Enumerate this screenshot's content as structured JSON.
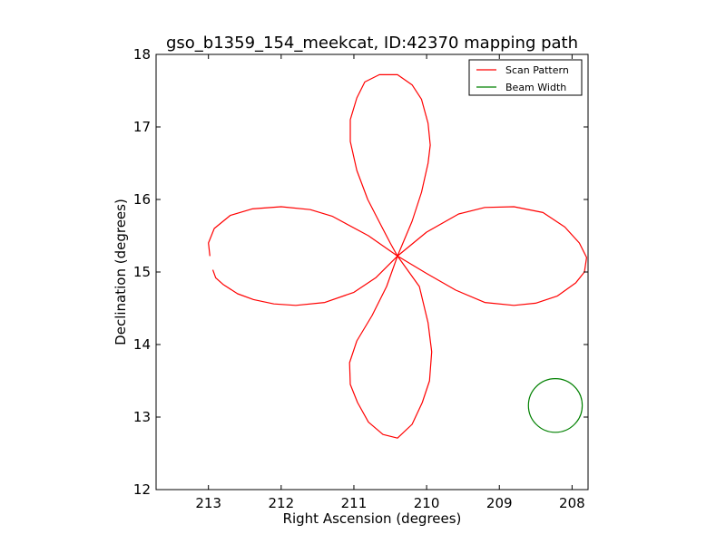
{
  "chart_data": {
    "type": "line",
    "title": "gso_b1359_154_meekcat, ID:42370 mapping path",
    "xlabel": "Right Ascension (degrees)",
    "ylabel": "Declination (degrees)",
    "xlim": [
      213.72,
      207.78
    ],
    "ylim": [
      12,
      18
    ],
    "x_inverted": true,
    "xticks": [
      "213",
      "212",
      "211",
      "210",
      "209",
      "208"
    ],
    "yticks": [
      "12",
      "13",
      "14",
      "15",
      "16",
      "17",
      "18"
    ],
    "grid": false,
    "legend_position": "top-right",
    "series": [
      {
        "name": "Scan Pattern",
        "color": "#ff0000",
        "x": [
          210.4,
          210.0,
          209.56,
          209.2,
          208.8,
          208.4,
          208.1,
          207.9,
          207.8,
          207.83,
          207.95,
          208.2,
          208.5,
          208.8,
          209.2,
          209.6,
          210.0,
          210.4,
          210.5,
          210.63,
          210.81,
          210.96,
          211.05,
          211.05,
          210.96,
          210.85,
          210.65,
          210.4,
          210.2,
          210.07,
          209.98,
          209.95,
          209.98,
          210.07,
          210.2,
          210.4,
          210.1,
          209.98,
          209.93,
          209.96,
          210.06,
          210.2,
          210.4,
          210.6,
          210.8,
          210.95,
          211.05,
          211.06,
          210.96,
          210.75,
          210.55,
          210.4,
          210.8,
          211.3,
          211.6,
          212.0,
          212.4,
          212.7,
          212.92,
          213.0,
          212.98
        ],
        "y": [
          15.22,
          15.55,
          15.8,
          15.89,
          15.9,
          15.82,
          15.62,
          15.4,
          15.2,
          15.0,
          14.85,
          14.67,
          14.57,
          14.54,
          14.58,
          14.75,
          14.98,
          15.22,
          15.4,
          15.65,
          16.0,
          16.4,
          16.8,
          17.1,
          17.4,
          17.62,
          17.72,
          17.72,
          17.58,
          17.38,
          17.05,
          16.75,
          16.5,
          16.1,
          15.7,
          15.22,
          14.8,
          14.3,
          13.9,
          13.5,
          13.2,
          12.9,
          12.71,
          12.76,
          12.93,
          13.2,
          13.45,
          13.75,
          14.05,
          14.4,
          14.8,
          15.22,
          15.5,
          15.77,
          15.86,
          15.9,
          15.87,
          15.78,
          15.6,
          15.4,
          15.22
        ]
      },
      {
        "name": "Beam Width",
        "color": "#008000",
        "shape": "circle",
        "center": [
          208.23,
          13.16
        ],
        "radius_deg": 0.37
      }
    ],
    "fragments": [
      {
        "series": "Scan Pattern",
        "x": [
          212.94,
          212.9,
          212.8,
          212.6,
          212.38,
          212.1,
          211.8,
          211.4,
          211.0,
          210.7,
          210.4
        ],
        "y": [
          15.03,
          14.92,
          14.83,
          14.7,
          14.62,
          14.56,
          14.54,
          14.58,
          14.72,
          14.92,
          15.22
        ]
      }
    ]
  }
}
